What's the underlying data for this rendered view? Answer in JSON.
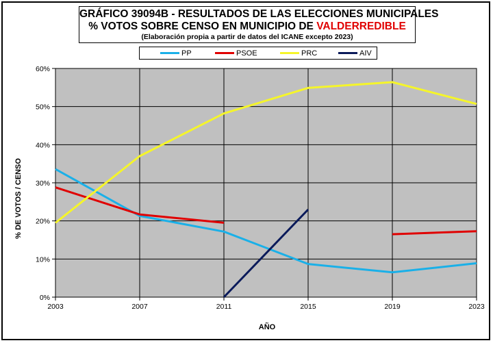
{
  "title": {
    "line1": "GRÁFICO 39094B - RESULTADOS DE LAS ELECCIONES MUNICIPALES",
    "line2_prefix": "% VOTOS SOBRE CENSO EN MUNICIPIO DE ",
    "line2_highlight": "VALDERREDIBLE",
    "line3": "(Elaboración propia a partir de datos del ICANE excepto 2023)"
  },
  "colors": {
    "plot_bg": "#c0c0c0",
    "highlight": "#e00000"
  },
  "chart_data": {
    "type": "line",
    "xlabel": "AÑO",
    "ylabel": "% DE VOTOS / CENSO",
    "x": [
      2003,
      2007,
      2011,
      2015,
      2019,
      2023
    ],
    "ylim": [
      0,
      60
    ],
    "yticks": [
      "0%",
      "10%",
      "20%",
      "30%",
      "40%",
      "50%",
      "60%"
    ],
    "grid": true,
    "legend_position": "top",
    "series": [
      {
        "name": "PP",
        "color": "#1ab0e8",
        "values": [
          33.6,
          21.3,
          17.2,
          8.7,
          6.5,
          8.9
        ]
      },
      {
        "name": "PSOE",
        "color": "#e00000",
        "values": [
          28.8,
          21.7,
          19.5,
          null,
          16.5,
          17.3
        ]
      },
      {
        "name": "PRC",
        "color": "#f5f52a",
        "values": [
          19.5,
          37.0,
          48.2,
          54.9,
          56.4,
          50.7
        ]
      },
      {
        "name": "AIV",
        "color": "#0a1a5a",
        "values": [
          null,
          null,
          0.0,
          23.0,
          null,
          null
        ]
      }
    ]
  }
}
